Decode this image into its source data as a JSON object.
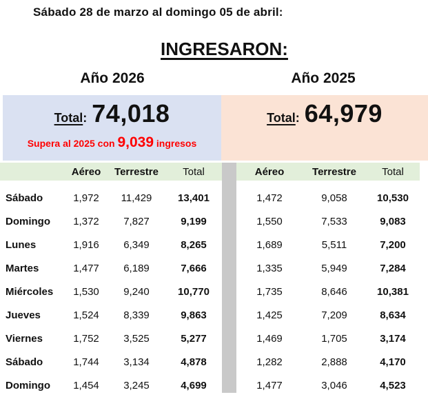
{
  "title": "Sábado 28 de marzo al domingo 05 de abril:",
  "heading": "INGRESARON:",
  "years": {
    "left": "Año 2026",
    "right": "Año 2025"
  },
  "totals": {
    "left": {
      "label": "Total",
      "colon": ":",
      "value": "74,018",
      "note_prefix": "Supera al 2025 con ",
      "note_value": "9,039",
      "note_suffix": " ingresos"
    },
    "right": {
      "label": "Total",
      "colon": ":",
      "value": "64,979"
    }
  },
  "table": {
    "columns": [
      "Aéreo",
      "Terrestre",
      "Total"
    ],
    "days": [
      "Sábado",
      "Domingo",
      "Lunes",
      "Martes",
      "Miércoles",
      "Jueves",
      "Viernes",
      "Sábado",
      "Domingo"
    ],
    "year2026": [
      [
        "1,972",
        "11,429",
        "13,401"
      ],
      [
        "1,372",
        "7,827",
        "9,199"
      ],
      [
        "1,916",
        "6,349",
        "8,265"
      ],
      [
        "1,477",
        "6,189",
        "7,666"
      ],
      [
        "1,530",
        "9,240",
        "10,770"
      ],
      [
        "1,524",
        "8,339",
        "9,863"
      ],
      [
        "1,752",
        "3,525",
        "5,277"
      ],
      [
        "1,744",
        "3,134",
        "4,878"
      ],
      [
        "1,454",
        "3,245",
        "4,699"
      ]
    ],
    "year2025": [
      [
        "1,472",
        "9,058",
        "10,530"
      ],
      [
        "1,550",
        "7,533",
        "9,083"
      ],
      [
        "1,689",
        "5,511",
        "7,200"
      ],
      [
        "1,335",
        "5,949",
        "7,284"
      ],
      [
        "1,735",
        "8,646",
        "10,381"
      ],
      [
        "1,425",
        "7,209",
        "8,634"
      ],
      [
        "1,469",
        "1,705",
        "3,174"
      ],
      [
        "1,282",
        "2,888",
        "4,170"
      ],
      [
        "1,477",
        "3,046",
        "4,523"
      ]
    ]
  },
  "colors": {
    "blue_box": "#dae1f2",
    "peach_box": "#fbe3d5",
    "green_header": "#e2efda",
    "gray_divider": "#c9c9c9",
    "red_note": "#ff0000"
  }
}
